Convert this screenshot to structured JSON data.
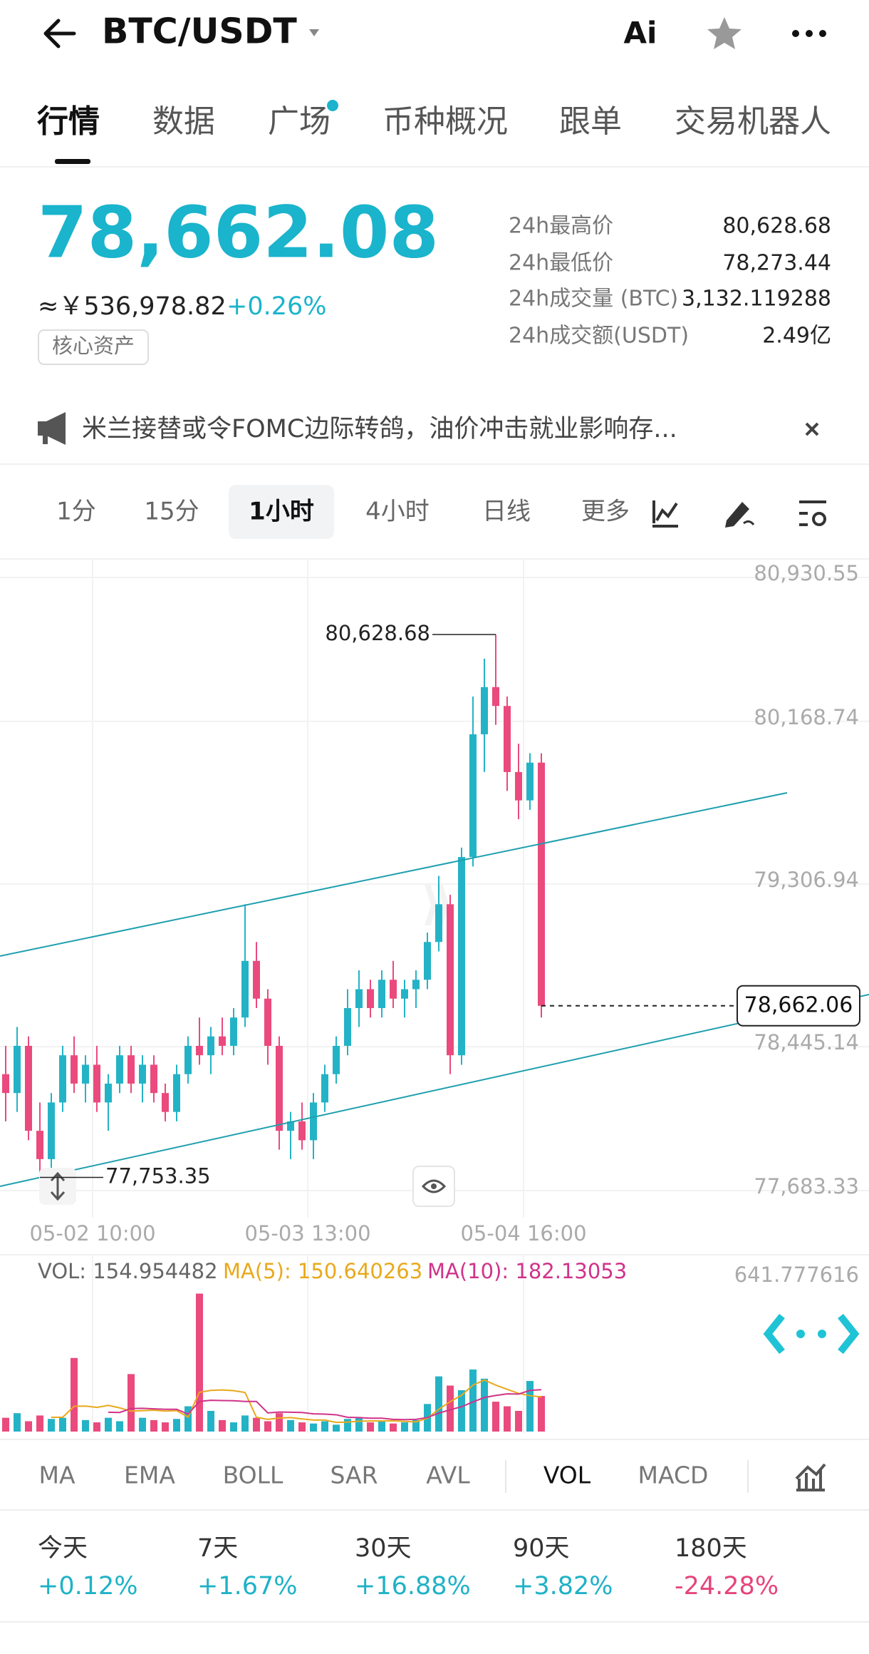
{
  "header": {
    "pair": "BTC/USDT",
    "ai": "Ai"
  },
  "tabs": {
    "items": [
      "行情",
      "数据",
      "广场",
      "币种概况",
      "跟单",
      "交易机器人"
    ],
    "selected": 0
  },
  "ticker": {
    "price": "78,662.08",
    "cny": "≈￥536,978.82",
    "change": "+0.26%",
    "tag": "核心资产",
    "stats": [
      {
        "label": "24h最高价",
        "value": "80,628.68"
      },
      {
        "label": "24h最低价",
        "value": "78,273.44"
      },
      {
        "label": "24h成交量 (BTC)",
        "value": "3,132.119288"
      },
      {
        "label": "24h成交额(USDT)",
        "value": "2.49亿"
      }
    ]
  },
  "notice": {
    "text": "米兰接替或令FOMC边际转鸽，油价冲击就业影响存..."
  },
  "intervals": {
    "items": [
      "1分",
      "15分",
      "1小时",
      "4小时",
      "日线",
      "更多"
    ],
    "selected": 2
  },
  "chart_data": [
    {
      "type": "candlestick",
      "ylim": [
        77683.33,
        80930.55
      ],
      "yticks": [
        {
          "value": 80930.55,
          "label": "80,930.55"
        },
        {
          "value": 80168.74,
          "label": "80,168.74"
        },
        {
          "value": 79306.94,
          "label": "79,306.94"
        },
        {
          "value": 78445.14,
          "label": "78,445.14"
        },
        {
          "value": 77683.33,
          "label": "77,683.33"
        }
      ],
      "x_labels": [
        "05-02 10:00",
        "05-03 13:00",
        "05-04 16:00"
      ],
      "grid": true,
      "up_color": "#24b3c6",
      "down_color": "#ea4a7d",
      "open": [
        78300,
        78200,
        78450,
        78000,
        77850,
        78150,
        78400,
        78250,
        78350,
        78150,
        78250,
        78400,
        78250,
        78350,
        78200,
        78100,
        78300,
        78450,
        78400,
        78500,
        78450,
        78600,
        78900,
        78700,
        78450,
        78000,
        78050,
        77950,
        78150,
        78300,
        78450,
        78650,
        78750,
        78650,
        78800,
        78700,
        78750,
        78800,
        79000,
        79200,
        78400,
        79450,
        80100,
        80350,
        80250,
        79900,
        79750,
        79950
      ],
      "high": [
        78450,
        78550,
        78500,
        78150,
        78200,
        78450,
        78500,
        78400,
        78450,
        78300,
        78450,
        78450,
        78400,
        78400,
        78250,
        78350,
        78500,
        78600,
        78550,
        78600,
        78650,
        79200,
        79000,
        78750,
        78500,
        78100,
        78150,
        78200,
        78350,
        78500,
        78750,
        78850,
        78800,
        78850,
        78900,
        78800,
        78850,
        79050,
        79350,
        79250,
        79500,
        80300,
        80500,
        80628.68,
        80300,
        80050,
        80000,
        80000
      ],
      "low": [
        78050,
        78100,
        77950,
        77753.35,
        77800,
        78100,
        78200,
        78150,
        78100,
        78000,
        78200,
        78200,
        78150,
        78150,
        78050,
        78050,
        78250,
        78350,
        78300,
        78400,
        78400,
        78550,
        78650,
        78350,
        77900,
        77850,
        77900,
        77850,
        78100,
        78250,
        78400,
        78550,
        78600,
        78600,
        78650,
        78600,
        78650,
        78750,
        78950,
        78300,
        78350,
        79400,
        79900,
        80150,
        79800,
        79650,
        79700,
        78600
      ],
      "close": [
        78200,
        78450,
        78000,
        77850,
        78150,
        78400,
        78250,
        78350,
        78150,
        78250,
        78400,
        78250,
        78350,
        78200,
        78100,
        78300,
        78450,
        78400,
        78500,
        78450,
        78600,
        78900,
        78700,
        78450,
        78000,
        78050,
        77950,
        78150,
        78300,
        78450,
        78650,
        78750,
        78650,
        78800,
        78700,
        78750,
        78800,
        79000,
        79200,
        78400,
        79450,
        80100,
        80350,
        80250,
        79900,
        79750,
        79950,
        78662.06
      ],
      "high_label": {
        "value": 80628.68,
        "label": "80,628.68"
      },
      "low_label": {
        "value": 77753.35,
        "label": "77,753.35"
      },
      "last_label": {
        "value": 78662.06,
        "label": "78,662.06"
      }
    },
    {
      "type": "volume",
      "ylim": [
        0,
        641.777616
      ],
      "top_label": "641.777616",
      "legend": [
        {
          "text": "VOL: 154.954482",
          "color": "#666666"
        },
        {
          "text": "MA(5): 150.640263",
          "color": "#e8a91c"
        },
        {
          "text": "MA(10): 182.13053",
          "color": "#d0338a"
        }
      ],
      "values": [
        60,
        80,
        45,
        70,
        55,
        60,
        320,
        50,
        40,
        60,
        45,
        250,
        60,
        50,
        40,
        55,
        110,
        600,
        90,
        50,
        40,
        70,
        60,
        45,
        80,
        50,
        40,
        35,
        45,
        30,
        55,
        60,
        40,
        45,
        35,
        40,
        50,
        120,
        240,
        200,
        180,
        270,
        230,
        130,
        110,
        90,
        220,
        154.954482
      ],
      "ma5": [
        null,
        null,
        null,
        null,
        62,
        62,
        110,
        111,
        105,
        114,
        103,
        89,
        91,
        93,
        89,
        91,
        63,
        171,
        179,
        181,
        178,
        170,
        62,
        53,
        59,
        61,
        55,
        50,
        50,
        40,
        41,
        45,
        46,
        46,
        47,
        44,
        42,
        58,
        97,
        130,
        158,
        202,
        224,
        202,
        184,
        166,
        156,
        150.640263
      ],
      "ma10": [
        null,
        null,
        null,
        null,
        null,
        null,
        null,
        null,
        null,
        84,
        83,
        100,
        101,
        99,
        97,
        97,
        76,
        131,
        136,
        135,
        134,
        131,
        131,
        81,
        85,
        84,
        83,
        77,
        76,
        73,
        62,
        61,
        58,
        58,
        53,
        52,
        53,
        61,
        80,
        95,
        108,
        129,
        148,
        157,
        164,
        163,
        179,
        182.13053
      ]
    }
  ],
  "indicators": {
    "items": [
      "MA",
      "EMA",
      "BOLL",
      "SAR",
      "AVL",
      "VOL",
      "MACD"
    ],
    "selected": 5
  },
  "performance": [
    {
      "label": "今天",
      "value": "+0.12%",
      "color": "#1fb2c6"
    },
    {
      "label": "7天",
      "value": "+1.67%",
      "color": "#1fb2c6"
    },
    {
      "label": "30天",
      "value": "+16.88%",
      "color": "#1fb2c6"
    },
    {
      "label": "90天",
      "value": "+3.82%",
      "color": "#1fb2c6"
    },
    {
      "label": "180天",
      "value": "-24.28%",
      "color": "#e5457c"
    }
  ]
}
